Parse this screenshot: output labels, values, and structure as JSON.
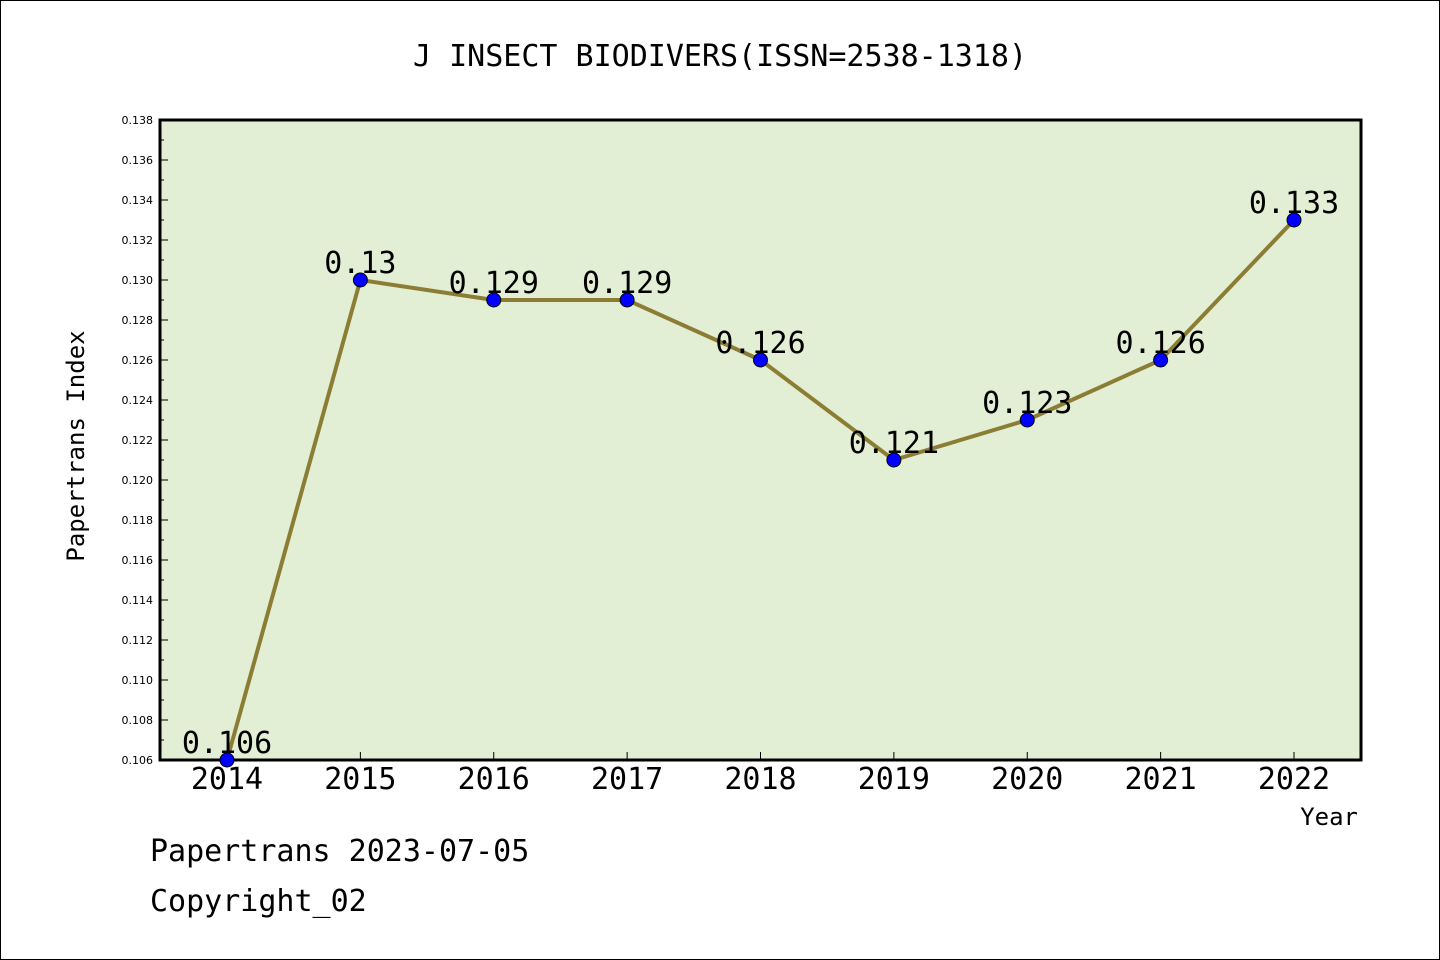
{
  "chart_data": {
    "type": "line",
    "title": "J INSECT BIODIVERS(ISSN=2538-1318)",
    "xlabel": "Year",
    "ylabel": "Papertrans Index",
    "categories": [
      "2014",
      "2015",
      "2016",
      "2017",
      "2018",
      "2019",
      "2020",
      "2021",
      "2022"
    ],
    "series": [
      {
        "values": [
          0.106,
          0.13,
          0.129,
          0.129,
          0.126,
          0.121,
          0.123,
          0.126,
          0.133
        ],
        "labels": [
          "0.106",
          "0.13",
          "0.129",
          "0.129",
          "0.126",
          "0.121",
          "0.123",
          "0.126",
          "0.133"
        ],
        "line_color": "#8b7d34",
        "marker_color": "#0000ff"
      }
    ],
    "ylim": [
      0.106,
      0.138
    ],
    "yticks": [
      "0.106",
      "0.108",
      "0.110",
      "0.112",
      "0.114",
      "0.116",
      "0.118",
      "0.120",
      "0.122",
      "0.124",
      "0.126",
      "0.128",
      "0.130",
      "0.132",
      "0.134",
      "0.136",
      "0.138"
    ],
    "plot_background": "#e2efd4",
    "grid": false
  },
  "footer": {
    "line1": "Papertrans 2023-07-05",
    "line2": "Copyright_02"
  }
}
